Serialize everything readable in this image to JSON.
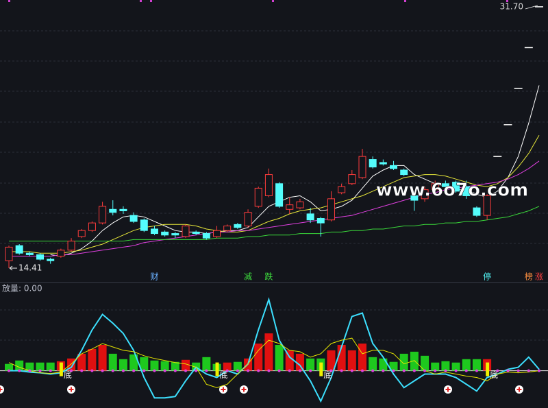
{
  "chart_data": [
    {
      "type": "candlestick",
      "open": [
        14.9,
        15.9,
        15.4,
        15.3,
        15.0,
        15.2,
        15.6,
        16.5,
        16.9,
        17.4,
        18.3,
        18.3,
        17.9,
        17.6,
        17.0,
        16.8,
        16.7,
        16.5,
        16.8,
        16.7,
        16.5,
        16.9,
        17.3,
        17.2,
        18.5,
        19.2,
        20.0,
        18.3,
        18.4,
        18.0,
        17.7,
        17.6,
        19.4,
        20.0,
        20.4,
        21.6,
        21.4,
        21.2,
        20.9,
        19.2,
        19.0,
        19.6,
        20.0,
        20.1,
        19.8,
        18.4,
        17.9,
        21.8,
        23.9,
        26.3,
        29.0,
        31.7
      ],
      "high": [
        15.9,
        16.0,
        15.5,
        15.4,
        15.1,
        15.7,
        16.4,
        17.0,
        17.5,
        18.8,
        18.9,
        18.5,
        18.1,
        17.7,
        17.2,
        16.9,
        16.8,
        17.3,
        16.9,
        16.8,
        17.2,
        17.3,
        17.4,
        18.3,
        19.8,
        21.0,
        20.1,
        19.1,
        19.0,
        18.4,
        17.8,
        19.5,
        20.0,
        20.9,
        22.3,
        21.8,
        21.6,
        21.5,
        21.0,
        19.3,
        19.8,
        20.2,
        20.2,
        20.2,
        20.2,
        18.5,
        19.3,
        21.8,
        23.9,
        26.3,
        29.0,
        31.7
      ],
      "low": [
        14.41,
        15.3,
        15.2,
        14.9,
        14.7,
        15.1,
        15.5,
        16.4,
        16.8,
        17.3,
        17.9,
        18.0,
        17.4,
        16.8,
        16.6,
        16.5,
        16.4,
        16.4,
        16.6,
        16.3,
        16.4,
        16.8,
        17.0,
        17.1,
        18.4,
        19.1,
        18.4,
        18.0,
        18.3,
        17.4,
        16.5,
        17.5,
        19.3,
        19.9,
        20.3,
        21.0,
        21.2,
        20.9,
        20.5,
        18.2,
        18.8,
        19.5,
        19.6,
        19.4,
        19.0,
        17.8,
        17.6,
        21.8,
        23.9,
        26.3,
        29.0,
        31.7
      ],
      "close": [
        15.8,
        15.4,
        15.3,
        15.0,
        14.9,
        15.6,
        16.2,
        16.9,
        17.4,
        18.5,
        18.1,
        18.2,
        17.5,
        16.9,
        16.7,
        16.6,
        16.6,
        17.2,
        16.7,
        16.4,
        16.9,
        17.2,
        17.1,
        18.1,
        19.7,
        20.6,
        18.5,
        18.6,
        18.8,
        17.6,
        17.4,
        19.0,
        19.8,
        20.6,
        21.8,
        21.1,
        21.3,
        21.0,
        20.6,
        18.9,
        19.6,
        20.0,
        19.8,
        19.5,
        19.2,
        17.9,
        19.2,
        21.8,
        23.9,
        26.3,
        29.0,
        31.7
      ],
      "up_color": "#ff3c3c",
      "down_color": "#54fcfc",
      "flat_color": "#ffffff",
      "ylim": [
        13.55,
        32.15
      ],
      "high_label": {
        "value": 31.7,
        "label": "31.70"
      },
      "low_label": 14.41,
      "lines": [
        {
          "color": "#ffffff",
          "values": [
            null,
            null,
            null,
            null,
            15.3,
            15.2,
            15.4,
            15.7,
            16.2,
            16.9,
            17.4,
            17.8,
            17.9,
            17.8,
            17.5,
            17.2,
            16.9,
            16.8,
            16.8,
            16.7,
            16.8,
            16.9,
            16.9,
            17.1,
            17.8,
            18.5,
            18.8,
            19.1,
            19.2,
            18.8,
            18.2,
            18.3,
            18.5,
            18.9,
            19.7,
            20.5,
            20.9,
            21.2,
            21.2,
            20.6,
            20.3,
            20.0,
            19.8,
            19.6,
            19.6,
            19.3,
            19.1,
            19.5,
            20.4,
            21.8,
            24.0,
            26.5
          ]
        },
        {
          "color": "#e8e83a",
          "values": [
            15.5,
            15.5,
            15.5,
            15.4,
            15.4,
            15.4,
            15.5,
            15.6,
            15.8,
            16.0,
            16.3,
            16.6,
            16.9,
            17.1,
            17.2,
            17.3,
            17.3,
            17.3,
            17.2,
            17.0,
            16.9,
            16.8,
            16.8,
            16.9,
            17.2,
            17.5,
            17.7,
            18.0,
            18.2,
            18.3,
            18.4,
            18.6,
            18.8,
            19.0,
            19.2,
            19.5,
            19.8,
            20.1,
            20.4,
            20.5,
            20.6,
            20.6,
            20.5,
            20.3,
            20.1,
            19.9,
            19.8,
            20.0,
            20.4,
            21.1,
            22.0,
            23.2
          ]
        },
        {
          "color": "#e040e0",
          "values": [
            15.2,
            15.2,
            15.2,
            15.2,
            15.2,
            15.3,
            15.3,
            15.4,
            15.5,
            15.6,
            15.7,
            15.8,
            15.9,
            16.1,
            16.2,
            16.3,
            16.4,
            16.5,
            16.6,
            16.7,
            16.8,
            16.8,
            16.9,
            16.9,
            17.0,
            17.1,
            17.2,
            17.3,
            17.4,
            17.5,
            17.6,
            17.7,
            17.8,
            17.9,
            18.1,
            18.3,
            18.5,
            18.7,
            18.9,
            19.1,
            19.3,
            19.4,
            19.6,
            19.7,
            19.8,
            19.9,
            20.0,
            20.1,
            20.3,
            20.6,
            21.0,
            21.5
          ]
        },
        {
          "color": "#3ad83a",
          "values": [
            16.2,
            16.2,
            16.2,
            16.2,
            16.2,
            16.2,
            16.2,
            16.2,
            16.2,
            16.2,
            16.2,
            16.2,
            16.3,
            16.3,
            16.3,
            16.3,
            16.3,
            16.3,
            16.3,
            16.3,
            16.4,
            16.4,
            16.4,
            16.5,
            16.5,
            16.6,
            16.6,
            16.6,
            16.7,
            16.7,
            16.7,
            16.8,
            16.8,
            16.9,
            16.9,
            17.0,
            17.0,
            17.1,
            17.2,
            17.2,
            17.3,
            17.3,
            17.4,
            17.4,
            17.5,
            17.5,
            17.6,
            17.7,
            17.8,
            18.0,
            18.2,
            18.5
          ]
        }
      ],
      "event_labels": [
        null,
        null,
        null,
        null,
        null,
        null,
        null,
        null,
        null,
        null,
        null,
        null,
        null,
        null,
        "财",
        null,
        null,
        null,
        null,
        null,
        null,
        null,
        null,
        "减",
        null,
        "跌",
        null,
        null,
        null,
        null,
        null,
        null,
        null,
        null,
        null,
        null,
        null,
        null,
        null,
        null,
        null,
        null,
        null,
        null,
        null,
        null,
        "停",
        null,
        null,
        null,
        "榜",
        "涨"
      ],
      "event_colors": [
        null,
        null,
        null,
        null,
        null,
        null,
        null,
        null,
        null,
        null,
        null,
        null,
        null,
        null,
        "#6ab0ff",
        null,
        null,
        null,
        null,
        null,
        null,
        null,
        null,
        "#3cdc3c",
        null,
        "#3cdc3c",
        null,
        null,
        null,
        null,
        null,
        null,
        null,
        null,
        null,
        null,
        null,
        null,
        null,
        null,
        null,
        null,
        null,
        null,
        null,
        null,
        "#54fcfc",
        null,
        null,
        null,
        "#ff9040",
        "#ff4040"
      ],
      "annotation": "www.6o7o.com"
    },
    {
      "type": "indicator",
      "title": "放量: 0.00",
      "ylim": [
        -55,
        130
      ],
      "series": [
        {
          "color": "#e01010",
          "values": [
            null,
            null,
            null,
            null,
            null,
            14,
            18,
            25,
            32,
            38,
            null,
            null,
            null,
            null,
            null,
            null,
            null,
            16,
            null,
            null,
            null,
            12,
            null,
            18,
            40,
            55,
            null,
            30,
            25,
            null,
            null,
            30,
            38,
            30,
            40,
            null,
            null,
            null,
            null,
            null,
            null,
            null,
            null,
            null,
            null,
            null,
            17,
            null,
            null,
            null,
            null,
            null
          ]
        },
        {
          "color": "#1ec81e",
          "values": [
            10,
            15,
            12,
            12,
            12,
            null,
            null,
            null,
            null,
            null,
            25,
            17,
            24,
            20,
            15,
            14,
            13,
            null,
            12,
            20,
            10,
            null,
            13,
            null,
            null,
            null,
            38,
            null,
            null,
            18,
            18,
            null,
            null,
            null,
            null,
            20,
            18,
            13,
            25,
            28,
            22,
            12,
            14,
            12,
            17,
            17,
            null,
            null,
            null,
            null,
            null,
            null
          ]
        }
      ],
      "lines": [
        {
          "color": "#3ce0ff",
          "values": [
            0,
            0,
            -2,
            -3,
            -5,
            -3,
            5,
            30,
            60,
            83,
            70,
            55,
            30,
            -10,
            -40,
            -40,
            -38,
            -15,
            5,
            -5,
            -10,
            0,
            -5,
            10,
            60,
            105,
            45,
            20,
            8,
            -15,
            -45,
            -10,
            35,
            80,
            85,
            40,
            20,
            -5,
            -25,
            -15,
            -5,
            -5,
            -5,
            -10,
            -20,
            -30,
            -10,
            -5,
            2,
            5,
            20,
            2
          ]
        },
        {
          "color": "#e6e600",
          "values": [
            12,
            5,
            0,
            -3,
            -4,
            -2,
            10,
            25,
            32,
            40,
            35,
            30,
            28,
            22,
            18,
            15,
            12,
            10,
            5,
            -20,
            -25,
            -20,
            -5,
            10,
            30,
            45,
            40,
            30,
            28,
            20,
            25,
            40,
            45,
            48,
            25,
            30,
            30,
            25,
            10,
            15,
            0,
            -5,
            -2,
            -5,
            -8,
            -10,
            -15,
            -5,
            -2,
            -3,
            -2,
            0
          ]
        }
      ],
      "signal_labels": [
        null,
        null,
        null,
        null,
        null,
        "底",
        null,
        null,
        null,
        null,
        null,
        null,
        null,
        null,
        null,
        null,
        null,
        null,
        null,
        null,
        "底",
        null,
        null,
        null,
        null,
        null,
        null,
        null,
        null,
        null,
        "底",
        null,
        null,
        null,
        null,
        null,
        null,
        null,
        null,
        null,
        null,
        null,
        null,
        null,
        null,
        null,
        "底",
        null,
        null,
        null,
        null,
        null
      ]
    }
  ]
}
